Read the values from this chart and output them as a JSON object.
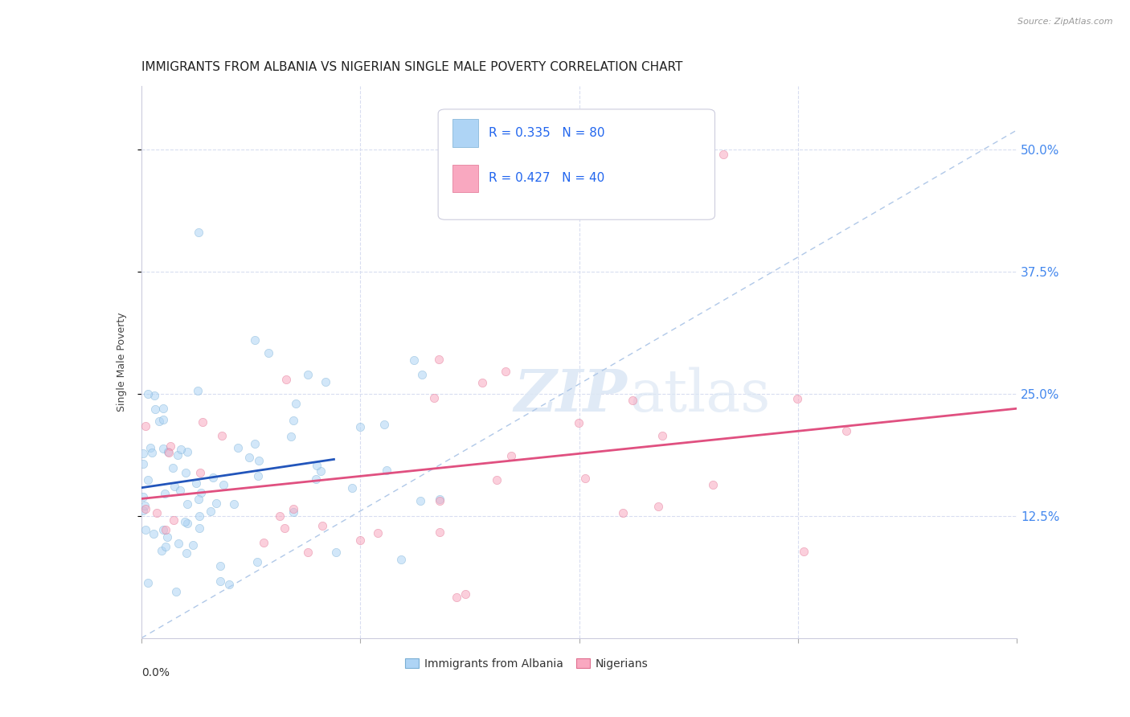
{
  "title": "IMMIGRANTS FROM ALBANIA VS NIGERIAN SINGLE MALE POVERTY CORRELATION CHART",
  "source": "Source: ZipAtlas.com",
  "ylabel": "Single Male Poverty",
  "ytick_labels": [
    "12.5%",
    "25.0%",
    "37.5%",
    "50.0%"
  ],
  "ytick_values": [
    0.125,
    0.25,
    0.375,
    0.5
  ],
  "xlim": [
    0.0,
    0.2
  ],
  "ylim": [
    0.0,
    0.565
  ],
  "albania_color": "#aed4f5",
  "albania_edge": "#7aafd4",
  "nigerian_color": "#f9a8c0",
  "nigerian_edge": "#e07090",
  "albania_R": 0.335,
  "albania_N": 80,
  "nigerian_R": 0.427,
  "nigerian_N": 40,
  "legend_text_color": "#2266ee",
  "trendline_albania_color": "#2255bb",
  "trendline_nigerian_color": "#e05080",
  "trendline_dashed_color": "#b0c8e8",
  "watermark_color": "#dde8f5",
  "background_color": "#ffffff",
  "grid_color": "#d8ddf0",
  "title_fontsize": 11,
  "axis_label_fontsize": 9,
  "tick_label_fontsize": 9,
  "right_tick_color": "#4488ee",
  "marker_size": 55,
  "marker_alpha": 0.55
}
